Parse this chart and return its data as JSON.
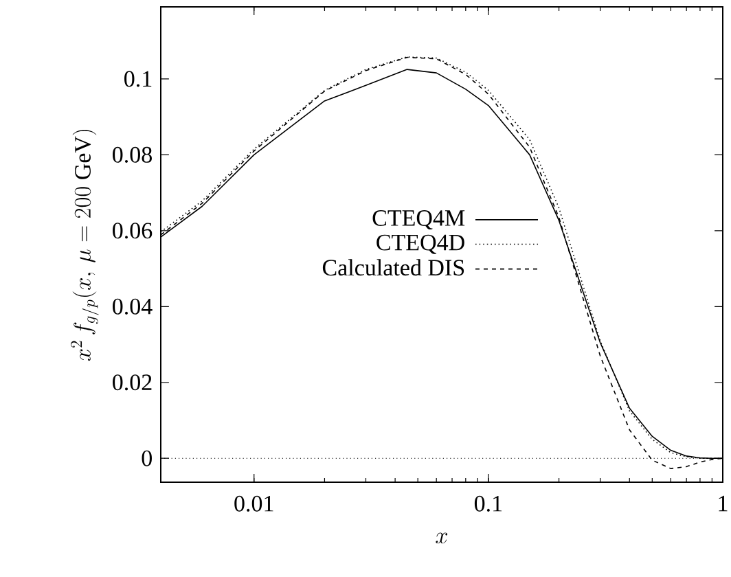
{
  "chart_data": {
    "type": "line",
    "xlabel": "x",
    "ylabel": "x^2\\, f_{g/p}(x,\\, \\mu = 200\\ \\mathrm{GeV})",
    "log": "x",
    "xlim": [
      0.004,
      1
    ],
    "xticks": [
      0.01,
      0.1,
      1
    ],
    "ylim": [
      -0.0063,
      0.119
    ],
    "yticks": [
      0,
      0.02,
      0.04,
      0.06,
      0.08,
      0.1
    ],
    "x": [
      0.004,
      0.006,
      0.01,
      0.02,
      0.03,
      0.045,
      0.06,
      0.08,
      0.1,
      0.15,
      0.2,
      0.3,
      0.4,
      0.5,
      0.6,
      0.7,
      0.8,
      0.9,
      1.0
    ],
    "series": [
      {
        "name": "CTEQ4M",
        "color": "#000000",
        "line_style": "solid",
        "values": [
          0.0583,
          0.0664,
          0.08,
          0.0942,
          0.0983,
          0.1025,
          0.1016,
          0.0973,
          0.093,
          0.08,
          0.0627,
          0.0305,
          0.0132,
          0.0058,
          0.0021,
          0.0006,
          0.0001,
          0.0,
          0.0
        ]
      },
      {
        "name": "CTEQ4D",
        "color": "#000000",
        "line_style": "dotted",
        "values": [
          0.0597,
          0.0678,
          0.0815,
          0.097,
          0.1025,
          0.1058,
          0.1055,
          0.1018,
          0.097,
          0.084,
          0.066,
          0.031,
          0.0125,
          0.005,
          0.0015,
          0.0004,
          0.0,
          0.0,
          0.0
        ]
      },
      {
        "name": "Calculated DIS",
        "color": "#000000",
        "line_style": "dashed",
        "values": [
          0.0589,
          0.0672,
          0.081,
          0.0968,
          0.1022,
          0.1057,
          0.1053,
          0.1012,
          0.096,
          0.082,
          0.0635,
          0.027,
          0.0075,
          -0.0005,
          -0.0027,
          -0.0022,
          -0.001,
          -0.0003,
          0.0
        ]
      }
    ],
    "ref_lines": [
      {
        "axis": "y",
        "value": 0,
        "line_style": "dotted",
        "color": "#000000"
      }
    ],
    "legend": "right",
    "grid": false,
    "marker": "none"
  }
}
